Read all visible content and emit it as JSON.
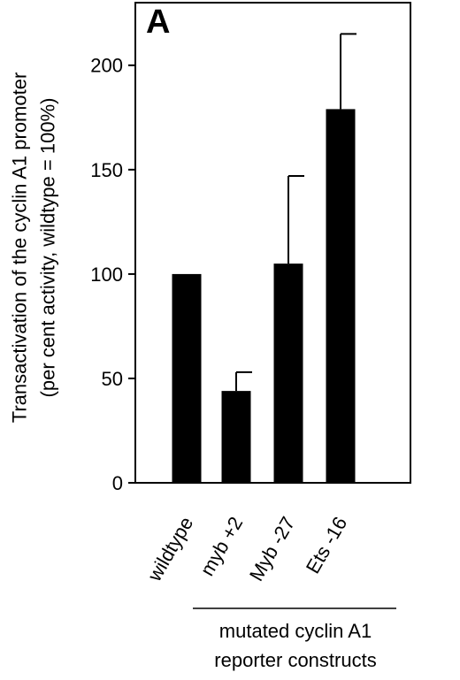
{
  "panel_label": "A",
  "chart_data": {
    "type": "bar",
    "title": "",
    "ylabel_lines": [
      "Transactivation of the cyclin A1 promoter",
      "(per cent activity, wildtype = 100%)"
    ],
    "xlabel_lines": [
      "mutated cyclin A1",
      "reporter constructs"
    ],
    "categories": [
      "wildtype",
      "myb +2",
      "Myb -27",
      "Ets -16"
    ],
    "values": [
      100,
      44,
      105,
      179
    ],
    "error_upper": [
      0,
      9,
      42,
      36
    ],
    "ylim": [
      0,
      230
    ],
    "yticks": [
      0,
      50,
      100,
      150,
      200
    ],
    "grid": false,
    "legend": "none",
    "bar_color": "#000000"
  }
}
